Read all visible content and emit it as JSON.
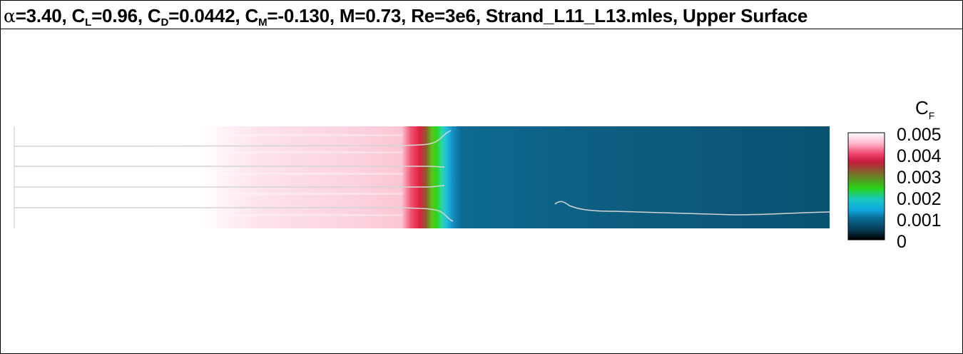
{
  "title": {
    "alpha_symbol": "α",
    "alpha_value": "=3.40, ",
    "cl_letter": "C",
    "cl_sub": "L",
    "cl_value": "=0.96, ",
    "cd_letter": "C",
    "cd_sub": "D",
    "cd_value": "=0.0442, ",
    "cm_letter": "C",
    "cm_sub": "M",
    "cm_value": "=-0.130, M=0.73, Re=3e6, Strand_L11_L13.mles, Upper Surface"
  },
  "colorbar": {
    "title_letter": "C",
    "title_sub": "F",
    "labels": [
      "0.005",
      "0.004",
      "0.003",
      "0.002",
      "0.001",
      "0"
    ],
    "stops": [
      "#ffffff",
      "#ff8fb0",
      "#e8204a",
      "#6b7c28",
      "#25d414",
      "#1cc8d8",
      "#0a78ad",
      "#0a4f6f",
      "#000000"
    ]
  },
  "colors": {
    "surface_dark": "#0b5878",
    "surface_pink": "#fddde6",
    "streamline": "#e8e8e8"
  }
}
